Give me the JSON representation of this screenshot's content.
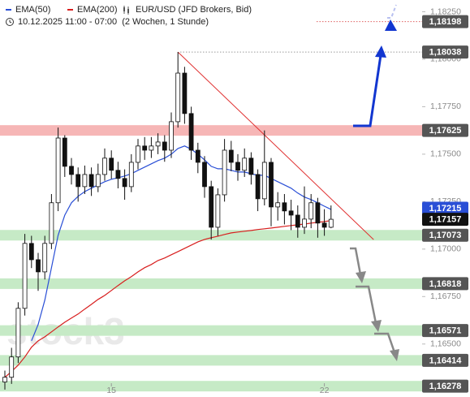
{
  "chart_data": {
    "type": "candlestick",
    "instrument": "EUR/USD (JFD Brokers, Bid)",
    "subtitle": "10.12.2025 11:00 - 07:00  (2 Wochen, 1 Stunde)",
    "watermark": "stock3",
    "categories": [
      null,
      null,
      null,
      null,
      null,
      null,
      null,
      null,
      null,
      null,
      null,
      null,
      null,
      null,
      null,
      null,
      "15",
      null,
      null,
      null,
      null,
      null,
      null,
      null,
      null,
      null,
      null,
      null,
      null,
      null,
      null,
      null,
      null,
      null,
      null,
      null,
      null,
      null,
      null,
      null,
      null,
      null,
      null,
      null,
      null,
      null,
      null,
      null,
      "22",
      null
    ],
    "open": [
      1.163,
      1.16325,
      1.16432,
      1.16688,
      1.1703,
      1.16944,
      1.1688,
      1.1703,
      1.17244,
      1.17585,
      1.17436,
      1.17393,
      1.17329,
      1.17393,
      1.17329,
      1.17393,
      1.17479,
      1.17415,
      1.17372,
      1.17329,
      1.17457,
      1.17543,
      1.17521,
      1.17543,
      1.17564,
      1.17521,
      1.17671,
      1.17927,
      1.17714,
      1.17521,
      1.17457,
      1.17329,
      1.17115,
      1.17286,
      1.17521,
      1.17457,
      1.17415,
      1.17479,
      1.17393,
      1.17265,
      1.17457,
      1.17222,
      1.17244,
      1.17201,
      1.17179,
      1.17115,
      1.17158,
      1.17244,
      1.17137,
      1.17115
    ],
    "high": [
      1.1636,
      1.1648,
      1.1672,
      1.1708,
      1.1707,
      1.1698,
      1.1707,
      1.1729,
      1.1764,
      1.176,
      1.1748,
      1.1743,
      1.1744,
      1.1743,
      1.1745,
      1.1753,
      1.1752,
      1.1746,
      1.1742,
      1.175,
      1.1758,
      1.1759,
      1.1759,
      1.1761,
      1.176,
      1.1772,
      1.18038,
      1.1796,
      1.1775,
      1.1756,
      1.1749,
      1.1736,
      1.1732,
      1.1758,
      1.1757,
      1.175,
      1.1753,
      1.1751,
      1.1742,
      1.17625,
      1.1748,
      1.173,
      1.1729,
      1.1726,
      1.1723,
      1.1733,
      1.1729,
      1.1727,
      1.1721,
      1.1723
    ],
    "low": [
      1.1626,
      1.1629,
      1.164,
      1.1665,
      1.169,
      1.1678,
      1.1684,
      1.17,
      1.172,
      1.1738,
      1.1734,
      1.1725,
      1.1729,
      1.1728,
      1.173,
      1.1736,
      1.1737,
      1.1732,
      1.1726,
      1.173,
      1.1742,
      1.1747,
      1.1748,
      1.175,
      1.1746,
      1.1748,
      1.1764,
      1.1766,
      1.1747,
      1.174,
      1.1727,
      1.1705,
      1.1707,
      1.1725,
      1.1741,
      1.1736,
      1.1738,
      1.1734,
      1.172,
      1.1723,
      1.1712,
      1.1715,
      1.1713,
      1.171,
      1.1706,
      1.1708,
      1.1711,
      1.1706,
      1.1707,
      1.1711
    ],
    "close": [
      1.16325,
      1.16432,
      1.16688,
      1.1703,
      1.16944,
      1.1688,
      1.1703,
      1.17244,
      1.17585,
      1.17436,
      1.17393,
      1.17329,
      1.17393,
      1.17329,
      1.17393,
      1.17479,
      1.17415,
      1.17372,
      1.17329,
      1.17457,
      1.17543,
      1.17521,
      1.17543,
      1.17564,
      1.17521,
      1.17671,
      1.17927,
      1.17714,
      1.17521,
      1.17457,
      1.17329,
      1.17115,
      1.17286,
      1.17521,
      1.17457,
      1.17415,
      1.17479,
      1.17393,
      1.17265,
      1.17457,
      1.17222,
      1.17244,
      1.17201,
      1.17179,
      1.17115,
      1.17158,
      1.17244,
      1.17137,
      1.17115,
      1.17157
    ],
    "series": [
      {
        "name": "EMA(50)",
        "color": "#2a4fd6",
        "values": [
          null,
          null,
          null,
          null,
          1.16517,
          1.16603,
          1.16731,
          1.16902,
          1.17073,
          1.17179,
          1.17244,
          1.17278,
          1.17303,
          1.17321,
          1.17338,
          1.17355,
          1.17368,
          1.17376,
          1.17385,
          1.17397,
          1.17415,
          1.17432,
          1.17449,
          1.17466,
          1.17479,
          1.175,
          1.1753,
          1.17543,
          1.17526,
          1.175,
          1.1747,
          1.17436,
          1.17423,
          1.17423,
          1.17415,
          1.17406,
          1.17406,
          1.17397,
          1.17389,
          1.17389,
          1.17372,
          1.17355,
          1.17338,
          1.17321,
          1.17295,
          1.17274,
          1.17261,
          1.17244,
          1.17226,
          1.17209
        ]
      },
      {
        "name": "EMA(200)",
        "color": "#d81e1e",
        "values": [
          1.16325,
          1.16355,
          1.16389,
          1.16432,
          1.16483,
          1.16517,
          1.16538,
          1.16564,
          1.1659,
          1.16615,
          1.16637,
          1.16658,
          1.16684,
          1.16709,
          1.16735,
          1.16756,
          1.16782,
          1.16808,
          1.16833,
          1.16855,
          1.1688,
          1.16902,
          1.16919,
          1.1694,
          1.16953,
          1.1697,
          1.16987,
          1.17004,
          1.17021,
          1.17038,
          1.17051,
          1.1706,
          1.17068,
          1.17077,
          1.17085,
          1.1709,
          1.17094,
          1.17098,
          1.17103,
          1.17107,
          1.17111,
          1.17115,
          1.1712,
          1.17124,
          1.17128,
          1.17132,
          1.17137,
          1.17141,
          1.17145,
          1.1715
        ]
      }
    ],
    "trendline": {
      "color": "#e03030",
      "x": [
        26,
        55.4
      ],
      "y": [
        1.18038,
        1.1705
      ]
    },
    "ylim": [
      1.16221,
      1.18312
    ],
    "yticks": [
      {
        "value": 1.165,
        "label": "1,16500"
      },
      {
        "value": 1.1675,
        "label": "1,16750"
      },
      {
        "value": 1.17,
        "label": "1,17000"
      },
      {
        "value": 1.1725,
        "label": "1,17250"
      },
      {
        "value": 1.175,
        "label": "1,17500"
      },
      {
        "value": 1.1775,
        "label": "1,17750"
      },
      {
        "value": 1.18,
        "label": "1,18000"
      },
      {
        "value": 1.1825,
        "label": "1,18250"
      }
    ],
    "levels": [
      {
        "value": 1.18198,
        "label": "1,18198",
        "style": "dotted",
        "color": "#e06060",
        "box": "#555555"
      },
      {
        "value": 1.18038,
        "label": "1,18038",
        "style": "dotted",
        "color": "#9a9a9a",
        "box": "#555555"
      },
      {
        "value": 1.17625,
        "label": "1,17625",
        "style": "band",
        "color": "#f6b6b6",
        "box": "#555555"
      },
      {
        "value": 1.17215,
        "label": "1,17215",
        "style": "none",
        "color": "#2a4fd6",
        "box": "#2a4fd6"
      },
      {
        "value": 1.17157,
        "label": "1,17157",
        "style": "none",
        "color": "#111111",
        "box": "#111111"
      },
      {
        "value": 1.17073,
        "label": "1,17073",
        "style": "band",
        "color": "#c6eac6",
        "box": "#555555"
      },
      {
        "value": 1.16818,
        "label": "1,16818",
        "style": "band",
        "color": "#c6eac6",
        "box": "#555555"
      },
      {
        "value": 1.16571,
        "label": "1,16571",
        "style": "band",
        "color": "#c6eac6",
        "box": "#555555"
      },
      {
        "value": 1.16414,
        "label": "1,16414",
        "style": "band",
        "color": "#c6eac6",
        "box": "#555555"
      },
      {
        "value": 1.16278,
        "label": "1,16278",
        "style": "band",
        "color": "#c6eac6",
        "box": "#555555"
      }
    ]
  }
}
